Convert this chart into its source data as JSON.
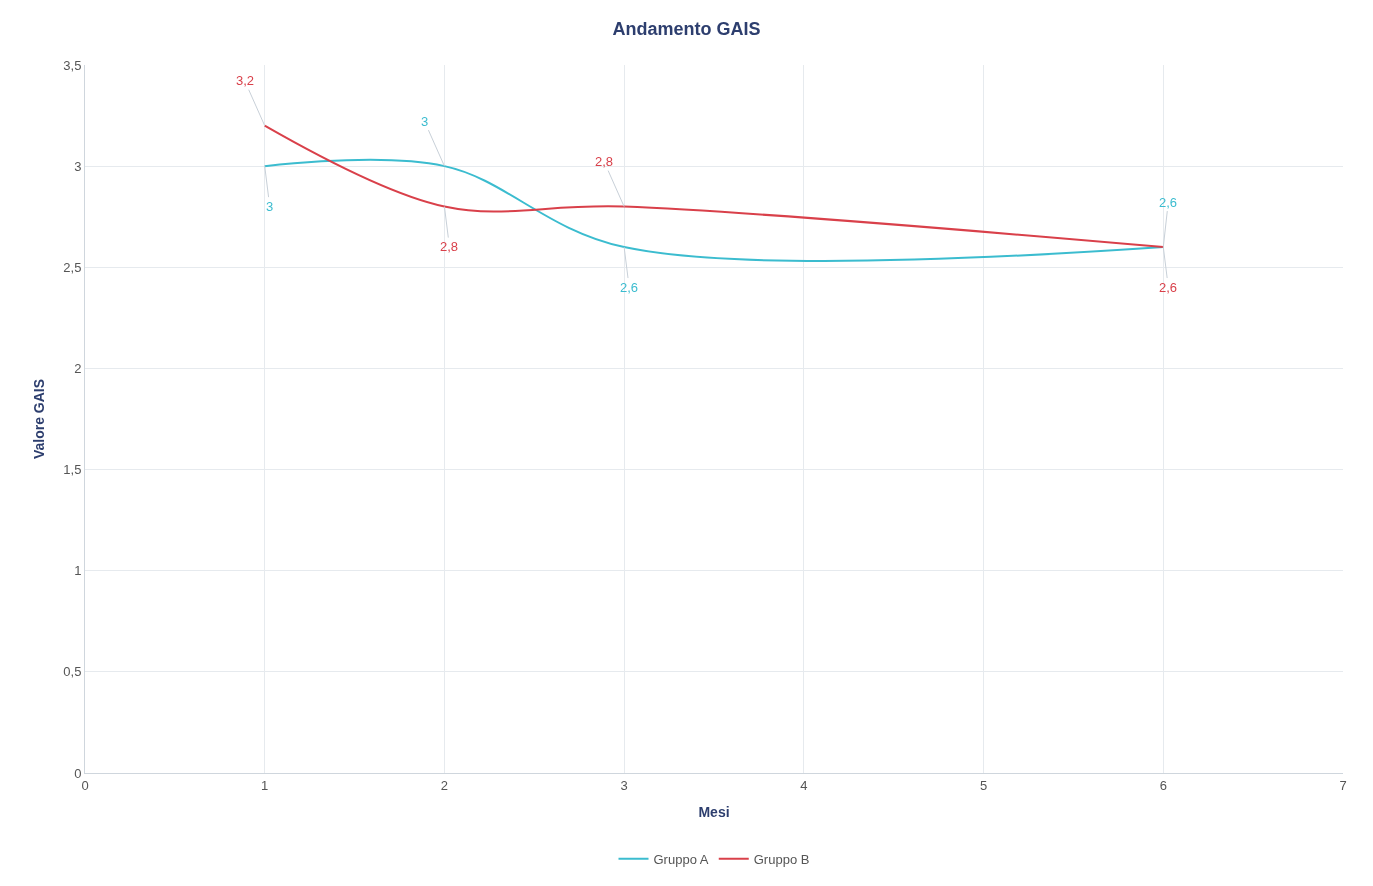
{
  "chart_data": {
    "type": "line",
    "title": "Andamento GAIS",
    "xlabel": "Mesi",
    "ylabel": "Valore GAIS",
    "x": [
      1,
      2,
      3,
      6
    ],
    "series": [
      {
        "name": "Gruppo A",
        "color": "#3bbccf",
        "values": [
          3,
          3,
          2.6,
          2.6
        ],
        "value_labels": [
          "3",
          "3",
          "2,6",
          "2,6"
        ]
      },
      {
        "name": "Gruppo B",
        "color": "#d9404a",
        "values": [
          3.2,
          2.8,
          2.8,
          2.6
        ],
        "value_labels": [
          "3,2",
          "2,8",
          "2,8",
          "2,6"
        ]
      }
    ],
    "xlim": [
      0,
      7
    ],
    "xticks": [
      0,
      1,
      2,
      3,
      4,
      5,
      6,
      7
    ],
    "ylim": [
      0,
      3.5
    ],
    "yticks": [
      0,
      {
        "value": 0.5,
        "label": "0,5"
      },
      1,
      {
        "value": 1.5,
        "label": "1,5"
      },
      2,
      {
        "value": 2.5,
        "label": "2,5"
      },
      3,
      {
        "value": 3.5,
        "label": "3,5"
      }
    ],
    "grid": true,
    "legend": "bottom",
    "marker": "none",
    "line_style": "solid"
  }
}
